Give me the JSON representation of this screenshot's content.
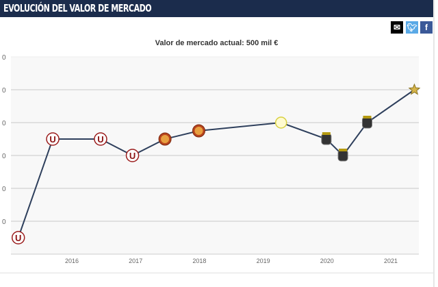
{
  "header": {
    "title": "EVOLUCIÓN DEL VALOR DE MERCADO"
  },
  "share": {
    "email_icon": "envelope-icon",
    "twitter_icon": "twitter-icon",
    "facebook_icon": "facebook-icon",
    "email_color": "#000000",
    "twitter_color": "#5aa9e6",
    "facebook_color": "#3b5998"
  },
  "subtitle": "Valor de mercado actual: 500 mil €",
  "chart_data": {
    "type": "line",
    "title": "",
    "xlabel": "",
    "ylabel": "",
    "x_ticks": [
      "2016",
      "2017",
      "2018",
      "2019",
      "2020",
      "2021"
    ],
    "y_tick_labels_visible": [
      "0",
      "0",
      "0",
      "0",
      "0",
      "0"
    ],
    "ylim": [
      0,
      600
    ],
    "xlim": [
      2015.05,
      2021.5
    ],
    "grid": true,
    "line_color": "#2e3f5c",
    "points": [
      {
        "x": 2015.16,
        "y": 50,
        "club": "Universitario"
      },
      {
        "x": 2015.7,
        "y": 350,
        "club": "Universitario"
      },
      {
        "x": 2016.45,
        "y": 350,
        "club": "Universitario"
      },
      {
        "x": 2016.95,
        "y": 300,
        "club": "Universitario"
      },
      {
        "x": 2017.46,
        "y": 350,
        "club": "UTC"
      },
      {
        "x": 2017.99,
        "y": 375,
        "club": "UTC"
      },
      {
        "x": 2019.28,
        "y": 400,
        "club": "green-yellow crest"
      },
      {
        "x": 2019.99,
        "y": 350,
        "club": "Boavista"
      },
      {
        "x": 2020.25,
        "y": 300,
        "club": "Boavista"
      },
      {
        "x": 2020.63,
        "y": 400,
        "club": "Boavista"
      },
      {
        "x": 2021.37,
        "y": 500,
        "club": "star crest"
      }
    ]
  }
}
